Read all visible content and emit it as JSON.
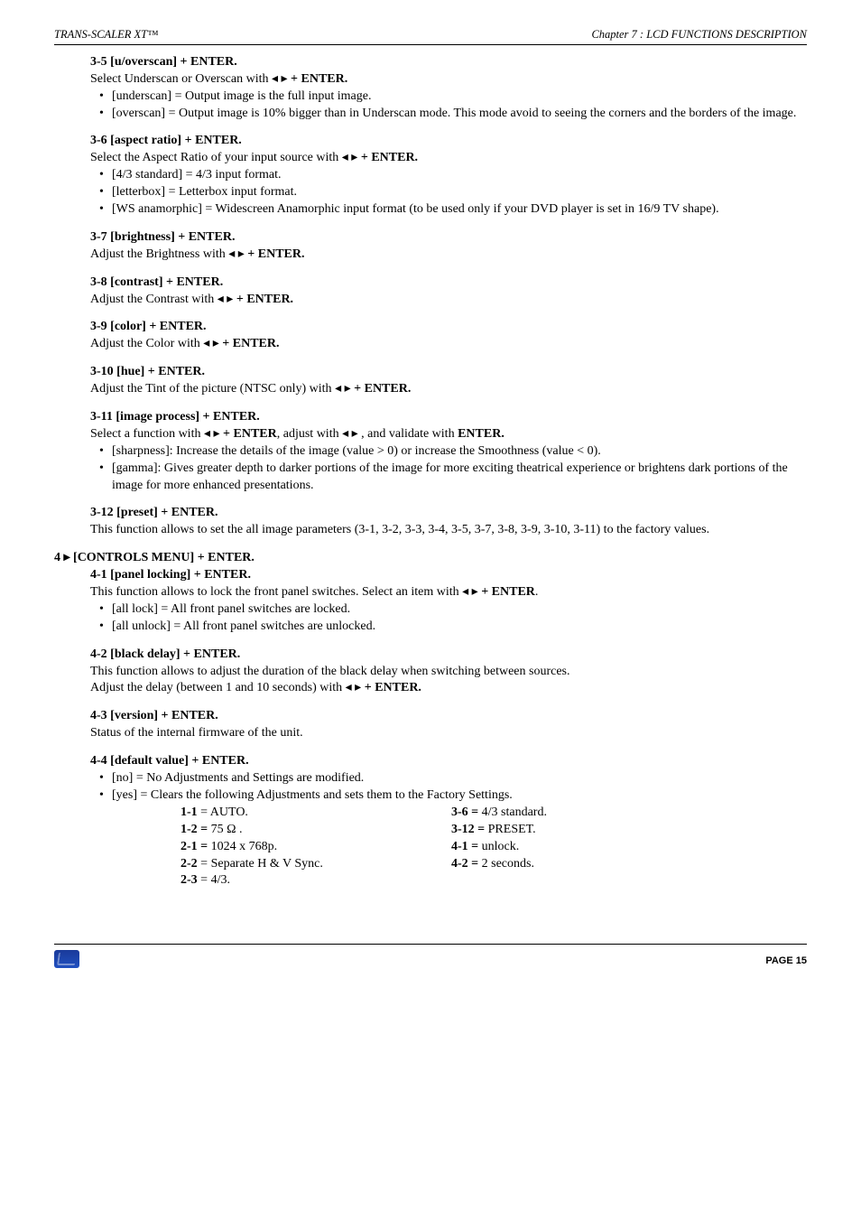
{
  "header": {
    "left": "TRANS-SCALER XT™",
    "right": "Chapter 7 : LCD FUNCTIONS DESCRIPTION"
  },
  "s35": {
    "title_lead": "3-5",
    "title_rest": " [u/overscan]  +  ENTER.",
    "line1_a": "Select Underscan or Overscan with  ",
    "line1_b": "   +  ENTER.",
    "b1": "[underscan] = Output image is the full input image.",
    "b2": "[overscan] =   Output image is 10% bigger than in Underscan mode. This mode avoid to seeing the corners and the borders of the image."
  },
  "s36": {
    "title_lead": "3-6",
    "title_rest": " [aspect ratio]  +  ENTER.",
    "line1_a": "Select the Aspect Ratio of your input source with  ",
    "line1_b": "   +  ENTER.",
    "b1": "[4/3 standard] =       4/3 input format.",
    "b2": "[letterbox] =             Letterbox input format.",
    "b3": "[WS anamorphic] =  Widescreen Anamorphic input format (to be used only if your DVD player is set in 16/9 TV shape)."
  },
  "s37": {
    "title_lead": "3-7",
    "title_rest": " [brightness]  +  ENTER.",
    "line_a": "Adjust the Brightness with  ",
    "line_b": "   +  ENTER."
  },
  "s38": {
    "title_lead": "3-8",
    "title_rest": " [contrast]  +  ENTER.",
    "line_a": "Adjust the Contrast with  ",
    "line_b": "  +  ENTER."
  },
  "s39": {
    "title_lead": "3-9",
    "title_rest": " [color]  +  ENTER.",
    "line_a": "Adjust the Color with  ",
    "line_b": "  +  ENTER."
  },
  "s310": {
    "title_lead": "3-10",
    "title_rest": " [hue]  +  ENTER.",
    "line_a": "Adjust the Tint of the picture (NTSC only) with  ",
    "line_b": "   +  ENTER."
  },
  "s311": {
    "title_lead": "3-11",
    "title_rest": " [image process]  +  ENTER.",
    "line1_a": "Select a function with  ",
    "line1_b": "   +  ENTER",
    "line1_c": ", adjust with  ",
    "line1_d": " , and validate with ENTER.",
    "b1": "[sharpness]: Increase the details of the image (value > 0) or increase the Smoothness (value < 0).",
    "b2": "[gamma]:   Gives greater depth to darker portions of the image for more exciting theatrical experience or brightens dark portions of the image for more enhanced presentations."
  },
  "s312": {
    "title_lead": "3-12",
    "title_rest": " [preset]  +  ENTER.",
    "body": "This function allows to set the all image parameters (3-1, 3-2, 3-3, 3-4, 3-5, 3-7, 3-8, 3-9, 3-10, 3-11) to the factory values."
  },
  "s4": {
    "title_a": "4 ",
    "title_b": " [CONTROLS MENU]  +  ENTER."
  },
  "s41": {
    "title_lead": "4-1",
    "title_rest": " [panel locking]  +  ENTER.",
    "line_a": "This function allows to lock the front panel switches. Select an item with  ",
    "line_b": "   +  ENTER",
    "line_c": ".",
    "b1": "[all lock] = All front panel switches are locked.",
    "b2": "[all unlock] = All front panel switches are unlocked."
  },
  "s42": {
    "title_lead": "4-2",
    "title_rest": " [black delay]  +  ENTER.",
    "body1": "This function allows to adjust the duration of the black delay when switching between sources.",
    "body2_a": "Adjust the delay (between 1 and 10 seconds) with  ",
    "body2_b": "   +  ENTER."
  },
  "s43": {
    "title_lead": "4-3",
    "title_rest": " [version]  +  ENTER.",
    "body": "Status of the internal firmware of the unit."
  },
  "s44": {
    "title_lead": "4-4",
    "title_rest": " [default value]  +  ENTER.",
    "b1": "[no] =    No Adjustments and Settings are modified.",
    "b2": "[yes] =   Clears the following Adjustments and sets them to the Factory Settings.",
    "r1a_b": "1-1",
    "r1a_t": " = AUTO.",
    "r1b_b": "3-6 =",
    "r1b_t": " 4/3 standard.",
    "r2a_b": "1-2 =",
    "r2a_t": " 75 Ω .",
    "r2b_b": "3-12 =",
    "r2b_t": " PRESET.",
    "r3a_b": "2-1 =",
    "r3a_t": " 1024 x 768p.",
    "r3b_b": "4-1 =",
    "r3b_t": " unlock.",
    "r4a_b": "2-2",
    "r4a_t": " = Separate H & V Sync.",
    "r4b_b": "4-2 =",
    "r4b_t": " 2 seconds.",
    "r5a_b": "2-3",
    "r5a_t": " = 4/3."
  },
  "footer": {
    "page": "PAGE 15"
  },
  "glyph": {
    "arrows": "◂ ▸",
    "right": "▸"
  }
}
